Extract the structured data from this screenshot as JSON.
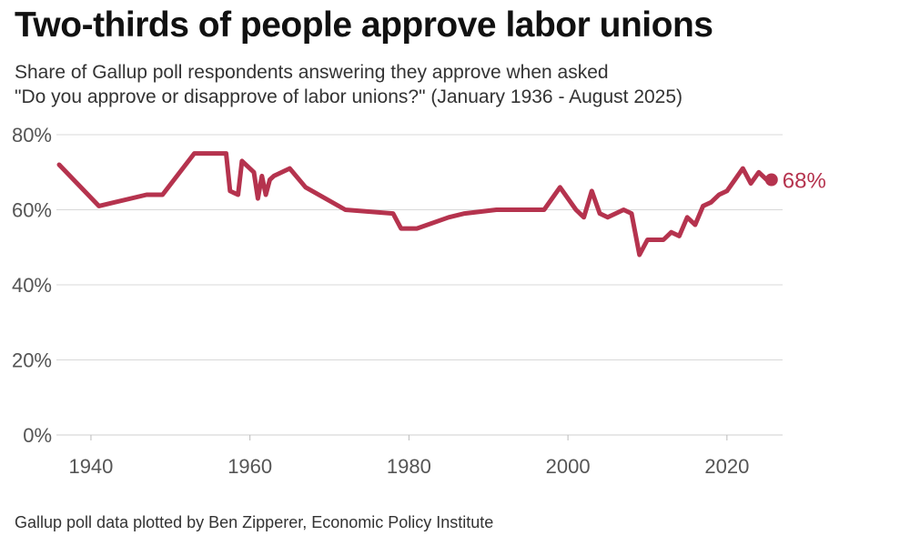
{
  "header": {
    "title": "Two-thirds of people approve labor unions",
    "subtitle_line1": "Share of Gallup poll respondents answering they approve when asked",
    "subtitle_line2": "\"Do you approve or disapprove of labor unions?\" (January 1936 - August 2025)"
  },
  "footer": {
    "source": "Gallup poll data plotted by Ben Zipperer, Economic Policy Institute"
  },
  "chart_data": {
    "type": "line",
    "title": "Two-thirds of people approve labor unions",
    "xlabel": "",
    "ylabel": "",
    "xlim": [
      1936,
      2027
    ],
    "ylim": [
      0,
      80
    ],
    "x_ticks": [
      1940,
      1960,
      1980,
      2000,
      2020
    ],
    "x_tick_labels": [
      "1940",
      "1960",
      "1980",
      "2000",
      "2020"
    ],
    "y_ticks": [
      0,
      20,
      40,
      60,
      80
    ],
    "y_tick_labels": [
      "0%",
      "20%",
      "40%",
      "60%",
      "80%"
    ],
    "grid": "horizontal",
    "line_color": "#b5334e",
    "gridline_color": "#d9d9d9",
    "end_label": "68%",
    "series": [
      {
        "name": "Approve",
        "x": [
          1936,
          1941,
          1947,
          1949,
          1953,
          1957,
          1957.5,
          1958.5,
          1959,
          1960.5,
          1961,
          1961.5,
          1962,
          1962.5,
          1963,
          1965,
          1967,
          1972,
          1978,
          1979,
          1981,
          1985,
          1987,
          1991,
          1997,
          1999,
          2001,
          2002,
          2003,
          2004,
          2005,
          2007,
          2008,
          2009,
          2010,
          2011,
          2012,
          2013,
          2014,
          2015,
          2016,
          2017,
          2018,
          2019,
          2020,
          2021,
          2022,
          2023,
          2024,
          2025,
          2025.6
        ],
        "y": [
          72,
          61,
          64,
          64,
          75,
          75,
          65,
          64,
          73,
          70,
          63,
          69,
          64,
          68,
          69,
          71,
          66,
          60,
          59,
          55,
          55,
          58,
          59,
          60,
          60,
          66,
          60,
          58,
          65,
          59,
          58,
          60,
          59,
          48,
          52,
          52,
          52,
          54,
          53,
          58,
          56,
          61,
          62,
          64,
          65,
          68,
          71,
          67,
          70,
          68,
          68
        ]
      }
    ]
  }
}
